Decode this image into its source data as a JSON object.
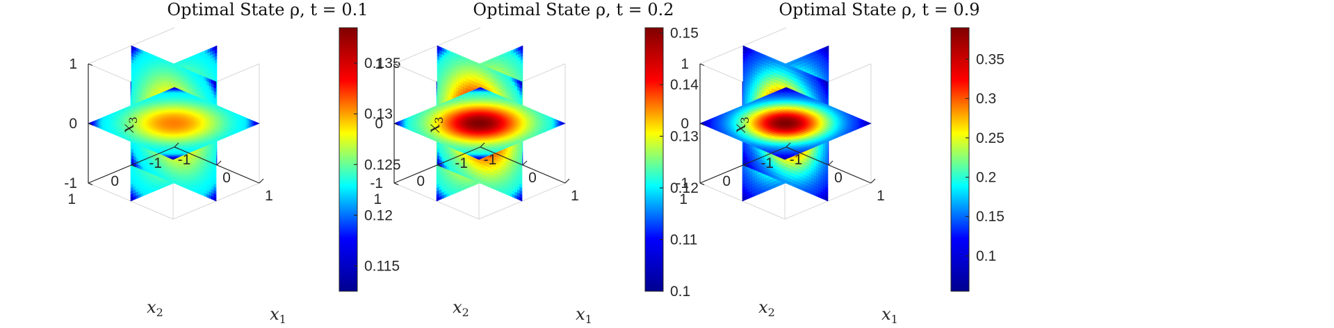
{
  "colors": {
    "jet": [
      "#00008f",
      "#0000ff",
      "#00ffff",
      "#ffff00",
      "#ff0000",
      "#800000"
    ],
    "axis": "#262626",
    "box": "#d6d6d6"
  },
  "chart_data": [
    {
      "type": "heatmap",
      "title": "Optimal State ρ, t = 0.1",
      "xlabel": "x1",
      "ylabel": "x2",
      "zlabel": "x3",
      "x_ticks": [
        "-1",
        "0",
        "1"
      ],
      "y_ticks": [
        "-1",
        "0",
        "1"
      ],
      "z_ticks": [
        "-1",
        "0",
        "1"
      ],
      "clim": [
        0.1125,
        0.1385
      ],
      "colorbar_ticks": [
        "0.115",
        "0.12",
        "0.125",
        "0.13",
        "0.135"
      ],
      "center_value": 0.132,
      "edge_value": 0.121,
      "min_value": 0.1125
    },
    {
      "type": "heatmap",
      "title": "Optimal State ρ, t = 0.2",
      "xlabel": "x1",
      "ylabel": "x2",
      "zlabel": "x3",
      "x_ticks": [
        "-1",
        "0",
        "1"
      ],
      "y_ticks": [
        "-1",
        "0",
        "1"
      ],
      "z_ticks": [
        "-1",
        "0",
        "1"
      ],
      "clim": [
        0.1,
        0.151
      ],
      "colorbar_ticks": [
        "0.1",
        "0.11",
        "0.12",
        "0.13",
        "0.14",
        "0.15"
      ],
      "center_value": 0.151,
      "edge_value": 0.118,
      "min_value": 0.1
    },
    {
      "type": "heatmap",
      "title": "Optimal State ρ, t = 0.9",
      "xlabel": "x1",
      "ylabel": "x2",
      "zlabel": "x3",
      "x_ticks": [
        "-1",
        "0",
        "1"
      ],
      "y_ticks": [
        "-1",
        "0",
        "1"
      ],
      "z_ticks": [
        "-1",
        "0",
        "1"
      ],
      "clim": [
        0.055,
        0.39
      ],
      "colorbar_ticks": [
        "0.1",
        "0.15",
        "0.2",
        "0.25",
        "0.3",
        "0.35"
      ],
      "center_value": 0.39,
      "edge_value": 0.09,
      "min_value": 0.06
    }
  ]
}
